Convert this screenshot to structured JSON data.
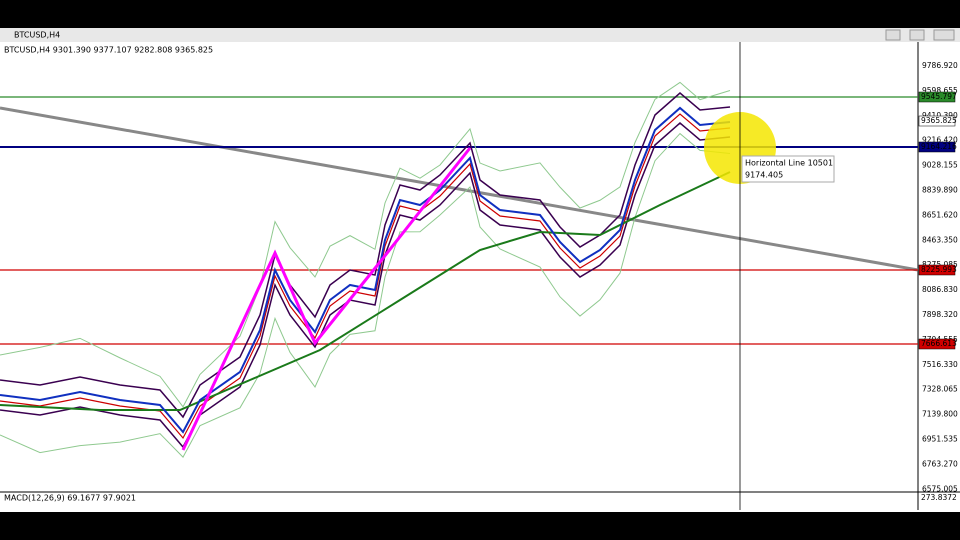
{
  "window": {
    "title": "BTCUSD,H4"
  },
  "chart": {
    "header": "BTCUSD,H4  9301.390 9377.107 9282.808 9365.825",
    "price_labels": [
      "9786.920",
      "9598.655",
      "9410.390",
      "9216.420",
      "9028.155",
      "8839.890",
      "8651.620",
      "8463.350",
      "8275.085",
      "8086.830",
      "7898.320",
      "7704.555",
      "7516.330",
      "7328.065",
      "7139.800",
      "6951.535",
      "6763.270",
      "6575.005"
    ],
    "line_labels": [
      "9545.797",
      "9365.825",
      "9164.216",
      "8225.993",
      "7666.613"
    ],
    "tooltip": {
      "name": "Horizontal Line 10501",
      "price": "9174.405"
    }
  },
  "macd": {
    "header": "MACD(12,26,9) 69.1677 97.9021",
    "scale": "273.8372"
  }
}
